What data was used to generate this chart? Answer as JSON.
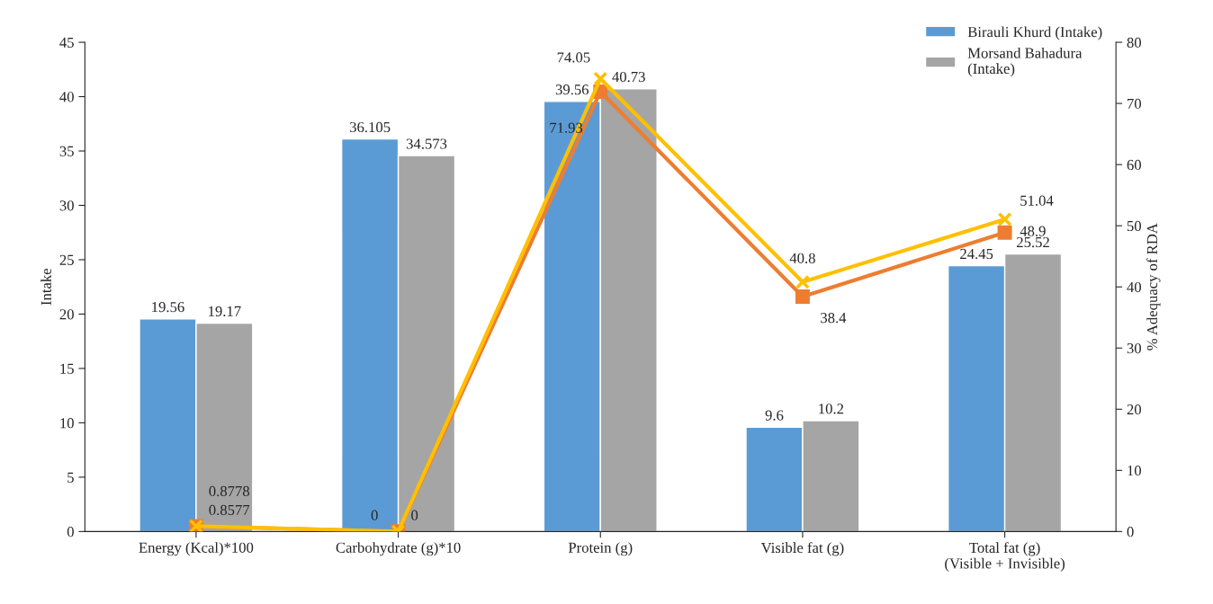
{
  "chart_data": {
    "type": "bar",
    "ylabel": "Intake",
    "y2label": "% Adequacy of RDA",
    "categories": [
      "Energy (Kcal)*100",
      "Carbohydrate (g)*10",
      "Protein (g)",
      "Visible fat (g)",
      "Total fat (g)\n(Visible + Invisible)"
    ],
    "series": [
      {
        "name": "Birauli Khurd (Intake)",
        "color": "#5b9bd5",
        "values": [
          19.56,
          36.105,
          39.56,
          9.6,
          24.45
        ],
        "value_labels": [
          "19.56",
          "36.105",
          "39.56",
          "9.6",
          "24.45"
        ]
      },
      {
        "name": "Morsand Bahadura\n(Intake)",
        "color": "#a5a5a5",
        "values": [
          19.17,
          34.573,
          40.73,
          10.2,
          25.52
        ],
        "value_labels": [
          "19.17",
          "34.573",
          "40.73",
          "10.2",
          "25.52"
        ]
      },
      {
        "type": "line",
        "axis": "y2",
        "color": "#ed7d31",
        "marker": "square",
        "values": [
          0.8577,
          0,
          71.93,
          38.4,
          48.9
        ],
        "value_labels": [
          "0.8577",
          "0",
          "71.93",
          "38.4",
          "48.9"
        ]
      },
      {
        "type": "line",
        "axis": "y2",
        "color": "#ffc000",
        "marker": "cross",
        "values": [
          0.8778,
          0,
          74.05,
          40.8,
          51.04
        ],
        "value_labels": [
          "0.8778",
          "0",
          "74.05",
          "40.8",
          "51.04"
        ]
      }
    ],
    "ylim": [
      0,
      45
    ],
    "yticks": [
      0,
      5,
      10,
      15,
      20,
      25,
      30,
      35,
      40,
      45
    ],
    "y2lim": [
      0,
      80
    ],
    "y2ticks": [
      0,
      10,
      20,
      30,
      40,
      50,
      60,
      70,
      80
    ],
    "grid": false,
    "legend": "top right"
  }
}
